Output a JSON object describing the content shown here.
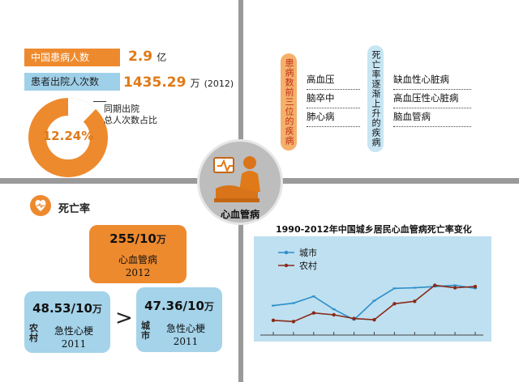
{
  "center": {
    "label": "心血管病"
  },
  "stats": {
    "patients_label": "中国患病人数",
    "patients_value": "2.9",
    "patients_unit": "亿",
    "discharge_label": "患者出院人次数",
    "discharge_value": "1435.29",
    "discharge_unit": "万",
    "discharge_year": "(2012)",
    "ratio_note_line1": "同期出院",
    "ratio_note_line2": "总人次数占比",
    "ratio_value": "12.24%",
    "ratio_fraction": 0.1224
  },
  "top_right": {
    "left_vertical": "患病数前三位的疾病",
    "left_items": [
      "高血压",
      "脑卒中",
      "肺心病"
    ],
    "right_vertical": "死亡率逐渐上升的疾病",
    "right_items": [
      "缺血性心脏病",
      "高血压性心脏病",
      "脑血管病"
    ]
  },
  "mortality": {
    "header": "死亡率",
    "overall_value": "255/10",
    "overall_unit": "万",
    "overall_label": "心血管病",
    "overall_year": "2012",
    "rural_value": "48.53/10",
    "rural_unit": "万",
    "rural_tag": "农村",
    "rural_label": "急性心梗",
    "rural_year": "2011",
    "compare_symbol": ">",
    "urban_value": "47.36/10",
    "urban_unit": "万",
    "urban_tag": "城市",
    "urban_label": "急性心梗",
    "urban_year": "2011"
  },
  "colors": {
    "orange": "#ee8a2e",
    "blue": "#9fd0ea",
    "urban_line": "#2a8fc9",
    "rural_line": "#8a2a1a",
    "divider": "#9a9a9a"
  },
  "icons": [
    "donut-chart-icon",
    "heart-pulse-icon",
    "doctor-patient-icon"
  ],
  "chart_data": {
    "type": "line",
    "title": "1990-2012年中国城乡居民心血管病死亡率变化",
    "xlabel": "",
    "ylabel": "",
    "x": [
      1,
      2,
      3,
      4,
      5,
      6,
      7,
      8,
      9,
      10,
      11
    ],
    "ylim": [
      0,
      100
    ],
    "grid": false,
    "legend_position": "top-left",
    "series": [
      {
        "name": "城市",
        "values": [
          40,
          44,
          55,
          34,
          17,
          48,
          68,
          69,
          71,
          73,
          68
        ],
        "color": "#2a8fc9"
      },
      {
        "name": "农村",
        "values": [
          16,
          14,
          28,
          25,
          19,
          17,
          43,
          47,
          73,
          69,
          71
        ],
        "color": "#8a2a1a"
      }
    ]
  }
}
